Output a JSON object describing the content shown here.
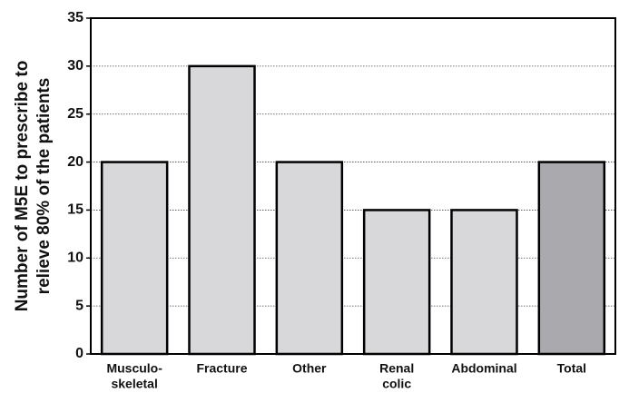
{
  "chart_data": {
    "type": "bar",
    "y_label": [
      "Number of M5E to prescribe to",
      "relieve 80% of the patients"
    ],
    "categories": [
      [
        "Musculo-",
        "skeletal"
      ],
      [
        "Fracture"
      ],
      [
        "Other"
      ],
      [
        "Renal",
        "colic"
      ],
      [
        "Abdominal"
      ],
      [
        "Total"
      ]
    ],
    "values": [
      20,
      30,
      20,
      15,
      15,
      20
    ],
    "colors": [
      "#d8d8da",
      "#d8d8da",
      "#d8d8da",
      "#d8d8da",
      "#d8d8da",
      "#a9a9ae"
    ],
    "ylim": [
      0,
      35
    ],
    "yticks": [
      0,
      5,
      10,
      15,
      20,
      25,
      30,
      35
    ],
    "grid": true
  }
}
